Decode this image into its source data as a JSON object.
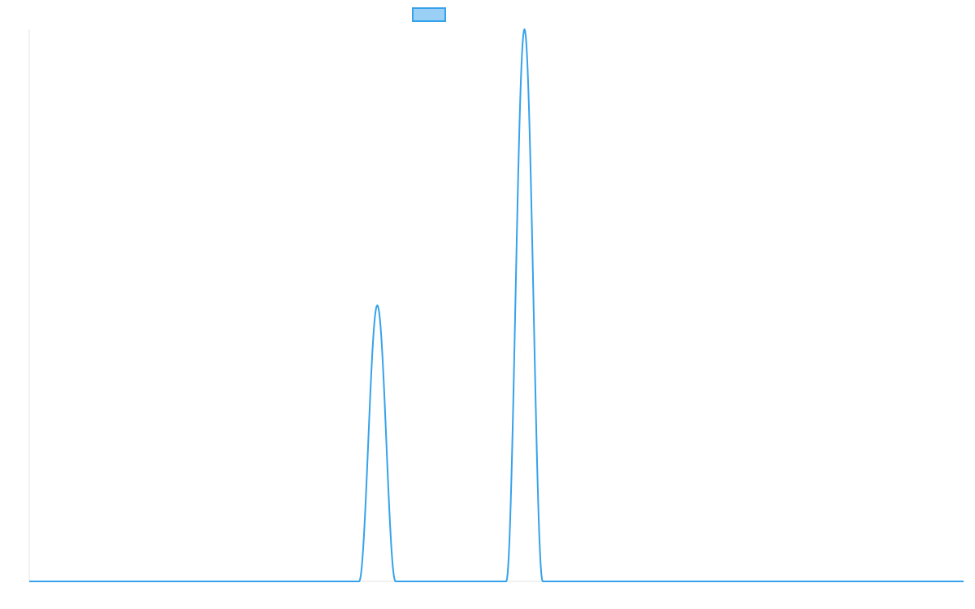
{
  "chart_data": {
    "type": "line",
    "title": "",
    "xlabel": "",
    "ylabel": "",
    "legend": {
      "placement": "top-center",
      "entries": [
        {
          "name": "",
          "color": "#36a2eb",
          "fill": "#9ad0f5"
        }
      ]
    },
    "grid": false,
    "x_range": [
      0,
      1
    ],
    "y_range": [
      0,
      1
    ],
    "series": [
      {
        "color": "#36a2eb",
        "baseline": 0,
        "peaks": [
          {
            "center": 0.3725,
            "half_width": 0.0195,
            "height": 0.5
          },
          {
            "center": 0.53,
            "half_width": 0.0195,
            "height": 1.0
          }
        ]
      }
    ]
  }
}
